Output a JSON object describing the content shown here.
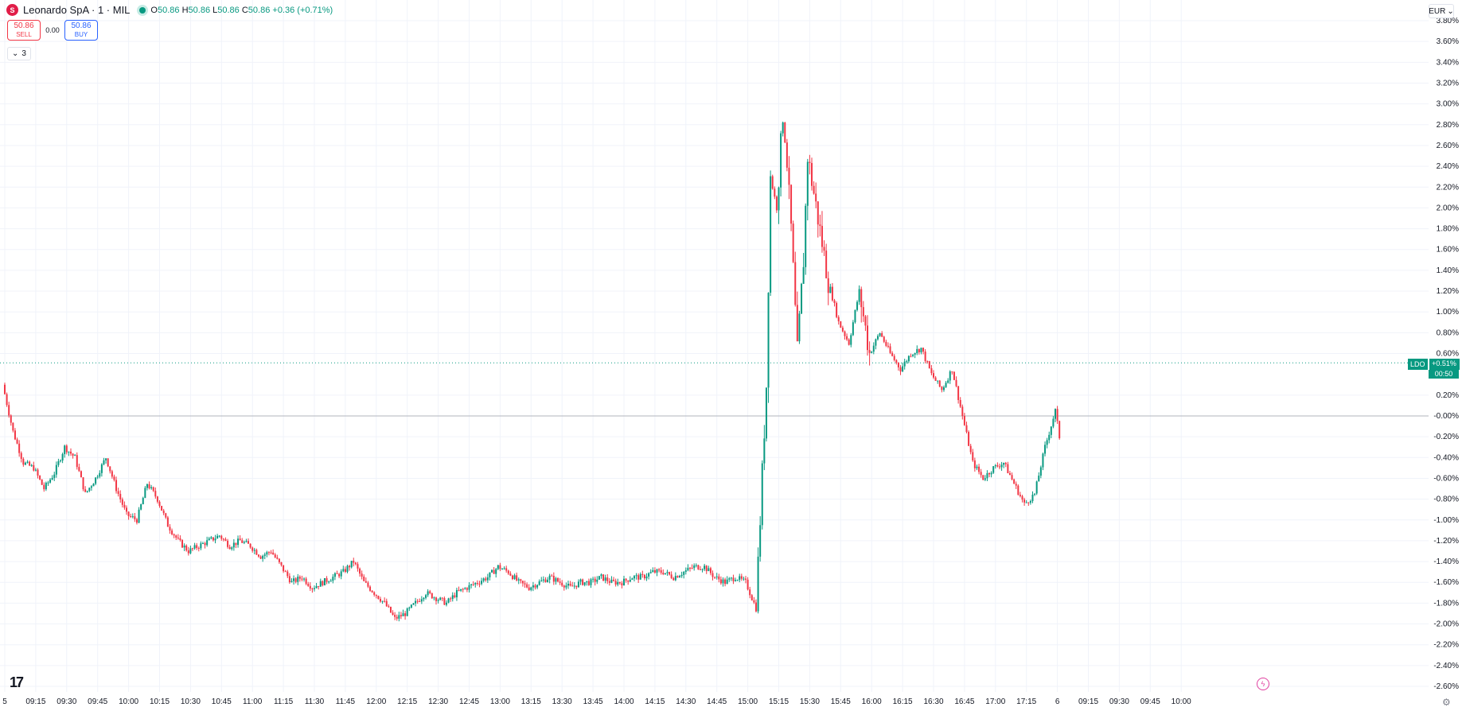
{
  "legend": {
    "icon_label": "S",
    "title": "Leonardo SpA · 1 · MIL",
    "open_label": "O",
    "open": "50.86",
    "high_label": "H",
    "high": "50.86",
    "low_label": "L",
    "low": "50.86",
    "close_label": "C",
    "close": "50.86",
    "change": "+0.36 (+0.71%)"
  },
  "trade": {
    "sell_price": "50.86",
    "sell_label": "SELL",
    "spread": "0.00",
    "buy_price": "50.86",
    "buy_label": "BUY"
  },
  "indicators_toggle": "3",
  "currency": "EUR",
  "price_tag": {
    "symbol": "LDO",
    "value": "+0.51%",
    "timer": "00:50"
  },
  "colors": {
    "up": "#089981",
    "down": "#f23645",
    "grid": "#f0f3fa",
    "baseline": "#b2b5be"
  },
  "icons": [
    "symbol-logo-icon",
    "live-status-icon",
    "chevron-down-icon",
    "tradingview-logo-icon",
    "flash-icon",
    "gear-icon"
  ],
  "chart_data": {
    "type": "candlestick",
    "y_unit": "percent",
    "ylim": [
      -2.6,
      3.8
    ],
    "y_ticks": [
      "3.80%",
      "3.60%",
      "3.40%",
      "3.20%",
      "3.00%",
      "2.80%",
      "2.60%",
      "2.40%",
      "2.20%",
      "2.00%",
      "1.80%",
      "1.60%",
      "1.40%",
      "1.20%",
      "1.00%",
      "0.80%",
      "0.60%",
      "0.20%",
      "-0.00%",
      "-0.20%",
      "-0.40%",
      "-0.60%",
      "-0.80%",
      "-1.00%",
      "-1.20%",
      "-1.40%",
      "-1.60%",
      "-1.80%",
      "-2.00%",
      "-2.20%",
      "-2.40%",
      "-2.60%"
    ],
    "x_ticks": [
      "5",
      "09:15",
      "09:30",
      "09:45",
      "10:00",
      "10:15",
      "10:30",
      "10:45",
      "11:00",
      "11:15",
      "11:30",
      "11:45",
      "12:00",
      "12:15",
      "12:30",
      "12:45",
      "13:00",
      "13:15",
      "13:30",
      "13:45",
      "14:00",
      "14:15",
      "14:30",
      "14:45",
      "15:00",
      "15:15",
      "15:30",
      "15:45",
      "16:00",
      "16:15",
      "16:30",
      "16:45",
      "17:00",
      "17:15",
      "6",
      "09:15",
      "09:30",
      "09:45",
      "10:00"
    ],
    "last_value": 0.51,
    "grid": true,
    "close_path": [
      {
        "t": "09:00",
        "v": 0.3
      },
      {
        "t": "09:05",
        "v": -0.15
      },
      {
        "t": "09:10",
        "v": -0.45
      },
      {
        "t": "09:15",
        "v": -0.5
      },
      {
        "t": "09:20",
        "v": -0.7
      },
      {
        "t": "09:25",
        "v": -0.55
      },
      {
        "t": "09:30",
        "v": -0.3
      },
      {
        "t": "09:35",
        "v": -0.4
      },
      {
        "t": "09:40",
        "v": -0.75
      },
      {
        "t": "09:45",
        "v": -0.6
      },
      {
        "t": "09:50",
        "v": -0.4
      },
      {
        "t": "09:55",
        "v": -0.7
      },
      {
        "t": "10:00",
        "v": -0.95
      },
      {
        "t": "10:05",
        "v": -1.0
      },
      {
        "t": "10:10",
        "v": -0.65
      },
      {
        "t": "10:15",
        "v": -0.8
      },
      {
        "t": "10:20",
        "v": -1.05
      },
      {
        "t": "10:25",
        "v": -1.2
      },
      {
        "t": "10:30",
        "v": -1.3
      },
      {
        "t": "10:35",
        "v": -1.25
      },
      {
        "t": "10:40",
        "v": -1.2
      },
      {
        "t": "10:45",
        "v": -1.15
      },
      {
        "t": "10:50",
        "v": -1.25
      },
      {
        "t": "10:55",
        "v": -1.2
      },
      {
        "t": "11:00",
        "v": -1.25
      },
      {
        "t": "11:05",
        "v": -1.35
      },
      {
        "t": "11:10",
        "v": -1.3
      },
      {
        "t": "11:15",
        "v": -1.45
      },
      {
        "t": "11:20",
        "v": -1.6
      },
      {
        "t": "11:25",
        "v": -1.55
      },
      {
        "t": "11:30",
        "v": -1.65
      },
      {
        "t": "11:35",
        "v": -1.6
      },
      {
        "t": "11:40",
        "v": -1.55
      },
      {
        "t": "11:45",
        "v": -1.5
      },
      {
        "t": "11:50",
        "v": -1.4
      },
      {
        "t": "11:55",
        "v": -1.6
      },
      {
        "t": "12:00",
        "v": -1.7
      },
      {
        "t": "12:05",
        "v": -1.8
      },
      {
        "t": "12:10",
        "v": -1.95
      },
      {
        "t": "12:15",
        "v": -1.9
      },
      {
        "t": "12:20",
        "v": -1.8
      },
      {
        "t": "12:25",
        "v": -1.7
      },
      {
        "t": "12:30",
        "v": -1.75
      },
      {
        "t": "12:35",
        "v": -1.8
      },
      {
        "t": "12:40",
        "v": -1.7
      },
      {
        "t": "12:45",
        "v": -1.65
      },
      {
        "t": "12:50",
        "v": -1.6
      },
      {
        "t": "12:55",
        "v": -1.55
      },
      {
        "t": "13:00",
        "v": -1.45
      },
      {
        "t": "13:05",
        "v": -1.5
      },
      {
        "t": "13:10",
        "v": -1.6
      },
      {
        "t": "13:15",
        "v": -1.65
      },
      {
        "t": "13:20",
        "v": -1.6
      },
      {
        "t": "13:25",
        "v": -1.55
      },
      {
        "t": "13:30",
        "v": -1.6
      },
      {
        "t": "13:35",
        "v": -1.65
      },
      {
        "t": "13:40",
        "v": -1.6
      },
      {
        "t": "13:45",
        "v": -1.6
      },
      {
        "t": "13:50",
        "v": -1.55
      },
      {
        "t": "13:55",
        "v": -1.6
      },
      {
        "t": "14:00",
        "v": -1.6
      },
      {
        "t": "14:05",
        "v": -1.55
      },
      {
        "t": "14:10",
        "v": -1.55
      },
      {
        "t": "14:15",
        "v": -1.5
      },
      {
        "t": "14:20",
        "v": -1.5
      },
      {
        "t": "14:25",
        "v": -1.55
      },
      {
        "t": "14:30",
        "v": -1.5
      },
      {
        "t": "14:35",
        "v": -1.45
      },
      {
        "t": "14:40",
        "v": -1.45
      },
      {
        "t": "14:45",
        "v": -1.55
      },
      {
        "t": "14:50",
        "v": -1.6
      },
      {
        "t": "14:55",
        "v": -1.55
      },
      {
        "t": "15:00",
        "v": -1.6
      },
      {
        "t": "15:05",
        "v": -1.85
      },
      {
        "t": "15:10",
        "v": 0.3
      },
      {
        "t": "15:12",
        "v": 2.3
      },
      {
        "t": "15:15",
        "v": 2.0
      },
      {
        "t": "15:18",
        "v": 2.9
      },
      {
        "t": "15:20",
        "v": 2.4
      },
      {
        "t": "15:22",
        "v": 1.8
      },
      {
        "t": "15:25",
        "v": 0.6
      },
      {
        "t": "15:28",
        "v": 1.5
      },
      {
        "t": "15:30",
        "v": 2.5
      },
      {
        "t": "15:35",
        "v": 1.9
      },
      {
        "t": "15:40",
        "v": 1.3
      },
      {
        "t": "15:45",
        "v": 0.9
      },
      {
        "t": "15:50",
        "v": 0.7
      },
      {
        "t": "15:55",
        "v": 1.2
      },
      {
        "t": "16:00",
        "v": 0.6
      },
      {
        "t": "16:05",
        "v": 0.8
      },
      {
        "t": "16:10",
        "v": 0.6
      },
      {
        "t": "16:15",
        "v": 0.45
      },
      {
        "t": "16:20",
        "v": 0.6
      },
      {
        "t": "16:25",
        "v": 0.65
      },
      {
        "t": "16:30",
        "v": 0.4
      },
      {
        "t": "16:35",
        "v": 0.25
      },
      {
        "t": "16:40",
        "v": 0.45
      },
      {
        "t": "16:45",
        "v": 0.0
      },
      {
        "t": "16:50",
        "v": -0.45
      },
      {
        "t": "16:55",
        "v": -0.6
      },
      {
        "t": "17:00",
        "v": -0.5
      },
      {
        "t": "17:05",
        "v": -0.45
      },
      {
        "t": "17:10",
        "v": -0.65
      },
      {
        "t": "17:15",
        "v": -0.85
      },
      {
        "t": "17:20",
        "v": -0.75
      },
      {
        "t": "17:25",
        "v": -0.3
      },
      {
        "t": "17:30",
        "v": 0.05
      },
      {
        "t": "17:32",
        "v": -0.2
      }
    ]
  }
}
